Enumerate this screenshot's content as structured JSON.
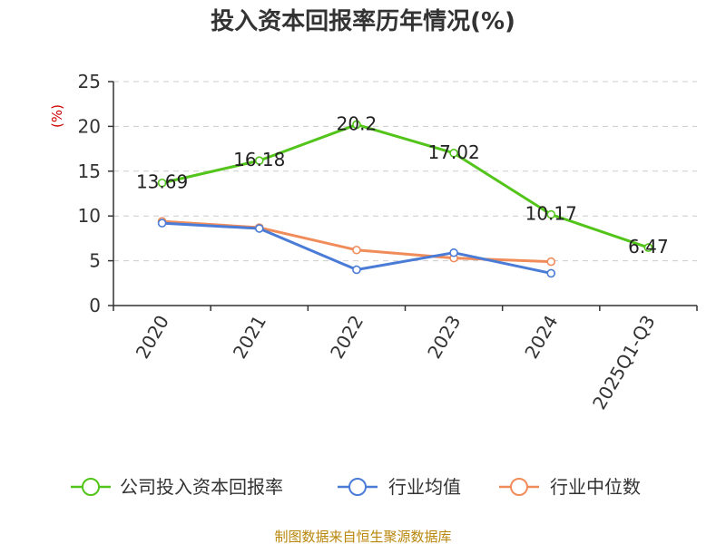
{
  "chart_data": {
    "type": "line",
    "title": "投入资本回报率历年情况(%)",
    "ylabel": "(%)",
    "categories": [
      "2020",
      "2021",
      "2022",
      "2023",
      "2024",
      "2025Q1-Q3"
    ],
    "ylim": [
      0,
      25
    ],
    "yticks": [
      0,
      5,
      10,
      15,
      20,
      25
    ],
    "grid": true,
    "legend_position": "bottom",
    "series": [
      {
        "name": "公司投入资本回报率",
        "color": "#52c41a",
        "values": [
          13.69,
          16.18,
          20.2,
          17.02,
          10.17,
          6.47
        ],
        "labels": [
          "13.69",
          "16.18",
          "20.2",
          "17.02",
          "10.17",
          "6.47"
        ]
      },
      {
        "name": "行业均值",
        "color": "#4a7bd6",
        "values": [
          9.2,
          8.6,
          4.0,
          5.9,
          3.6,
          null
        ]
      },
      {
        "name": "行业中位数",
        "color": "#f08c5a",
        "values": [
          9.4,
          8.7,
          6.2,
          5.3,
          4.9,
          null
        ]
      }
    ]
  },
  "source": "制图数据来自恒生聚源数据库"
}
